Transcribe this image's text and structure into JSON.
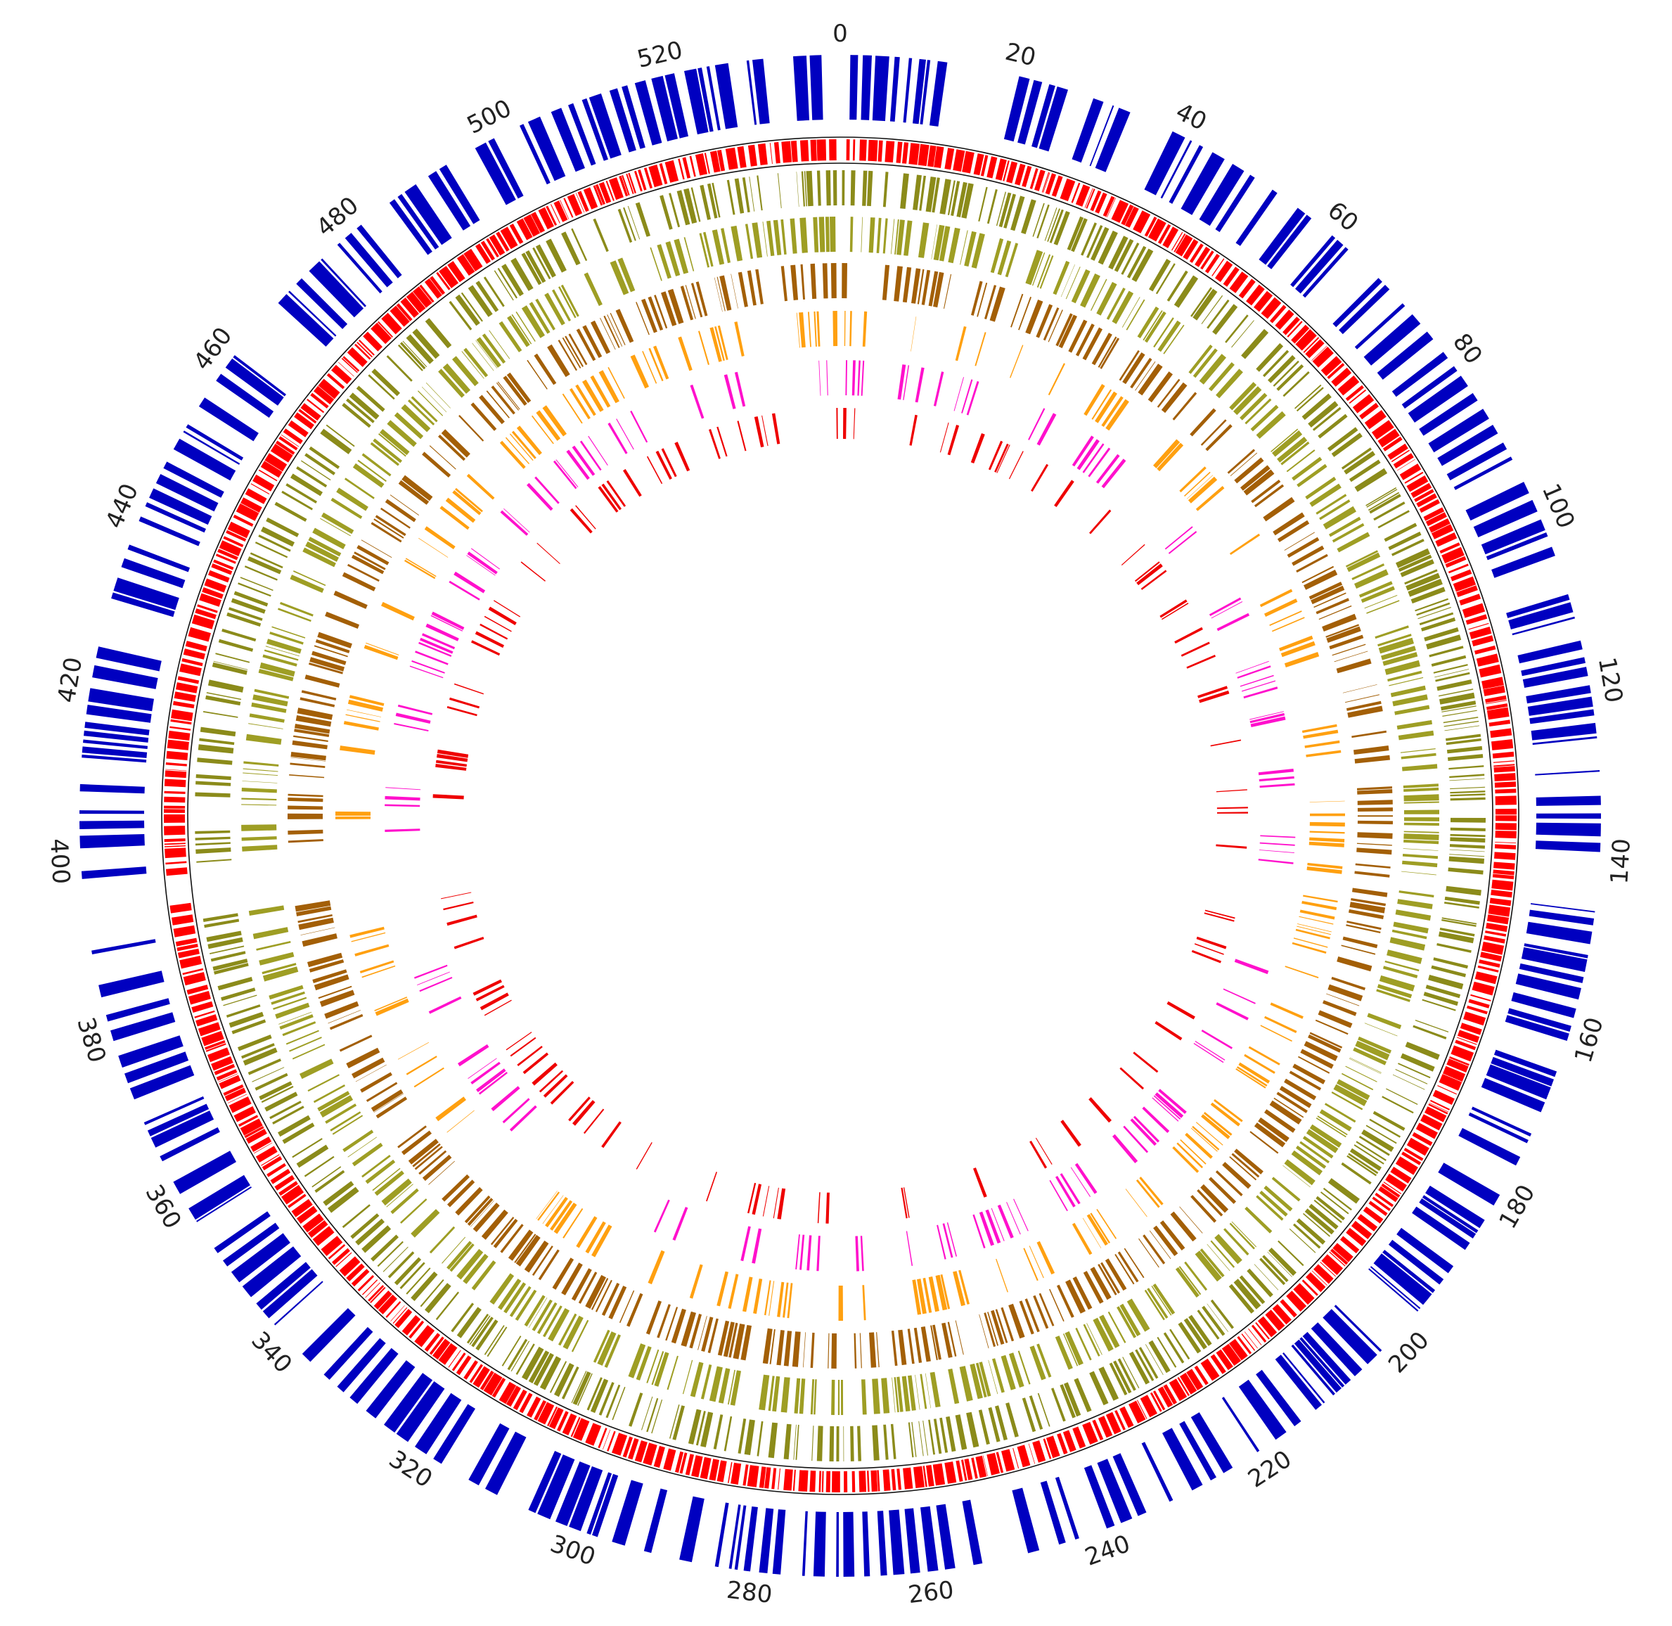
{
  "figure": {
    "genome_total_kb": 540,
    "gap_position_kb": 395,
    "tick_step_kb": 20,
    "tick_labels": [
      "0",
      "20",
      "40",
      "60",
      "80",
      "100",
      "120",
      "140",
      "160",
      "180",
      "200",
      "220",
      "240",
      "260",
      "280",
      "300",
      "320",
      "340",
      "360",
      "380",
      "400",
      "420",
      "440",
      "460",
      "480",
      "500",
      "520"
    ]
  },
  "tracks": [
    {
      "id": "genes",
      "color": "#0000c0",
      "density": 0.45,
      "min_width_kb": 0.15,
      "max_width_kb": 1.6
    },
    {
      "id": "coverage",
      "color": "#ff0000",
      "density": 0.78,
      "min_width_kb": 0.05,
      "max_width_kb": 1.2
    },
    {
      "id": "homology-1",
      "color": "#8b8b1a",
      "density": 0.55,
      "min_width_kb": 0.05,
      "max_width_kb": 0.8
    },
    {
      "id": "homology-2",
      "color": "#9e9e24",
      "density": 0.52,
      "min_width_kb": 0.05,
      "max_width_kb": 0.9
    },
    {
      "id": "homology-3",
      "color": "#a35f06",
      "density": 0.46,
      "min_width_kb": 0.05,
      "max_width_kb": 0.9
    },
    {
      "id": "homology-4",
      "color": "#ffa010",
      "density": 0.36,
      "min_width_kb": 0.05,
      "max_width_kb": 0.8
    },
    {
      "id": "homology-5",
      "color": "#ff10cc",
      "density": 0.26,
      "min_width_kb": 0.1,
      "max_width_kb": 0.7
    },
    {
      "id": "homology-6",
      "color": "#ee0000",
      "density": 0.22,
      "min_width_kb": 0.15,
      "max_width_kb": 0.8
    }
  ]
}
